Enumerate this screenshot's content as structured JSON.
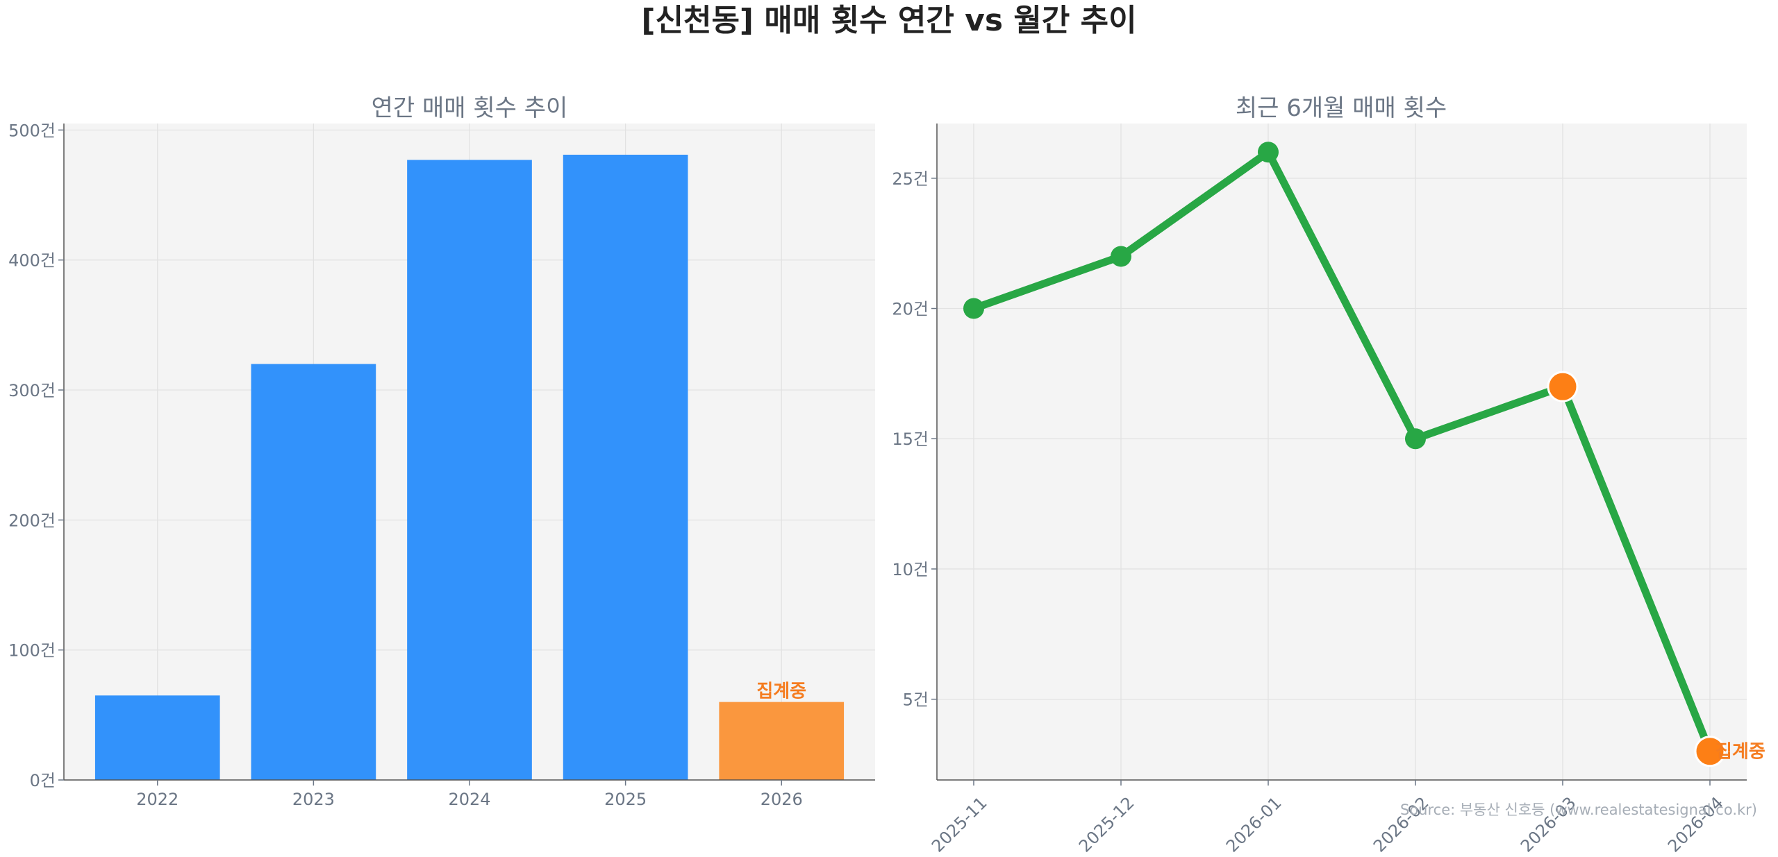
{
  "title": "[신천동] 매매 횟수 연간 vs 월간 추이",
  "source": "Source: 부동산 신호등 (www.realestatesignal.co.kr)",
  "colors": {
    "bar": "#3292fb",
    "bar_pending": "#fa973e",
    "line": "#28a745",
    "point": "#28a745",
    "point_highlight": "#fd7f15",
    "pending_text": "#f57c1f",
    "plot_bg": "#f4f4f4"
  },
  "chart_data": [
    {
      "type": "bar",
      "title": "연간 매매 횟수 추이",
      "categories": [
        "2022",
        "2023",
        "2024",
        "2025",
        "2026"
      ],
      "values": [
        65,
        320,
        477,
        481,
        60
      ],
      "pending": [
        false,
        false,
        false,
        false,
        true
      ],
      "pending_label": "집계중",
      "ylim": [
        0,
        505
      ],
      "yticks": [
        0,
        100,
        200,
        300,
        400,
        500
      ],
      "ytick_labels": [
        "0건",
        "100건",
        "200건",
        "300건",
        "400건",
        "500건"
      ],
      "grid": true
    },
    {
      "type": "line",
      "title": "최근 6개월 매매 횟수",
      "categories": [
        "2025-11",
        "2025-12",
        "2026-01",
        "2026-02",
        "2026-03",
        "2026-04"
      ],
      "values": [
        20,
        22,
        26,
        15,
        17,
        3
      ],
      "highlight": [
        false,
        false,
        false,
        false,
        true,
        true
      ],
      "pending_index": 5,
      "pending_label": "집계중",
      "ylim": [
        1.9,
        27.1
      ],
      "yticks": [
        5,
        10,
        15,
        20,
        25
      ],
      "ytick_labels": [
        "5건",
        "10건",
        "15건",
        "20건",
        "25건"
      ],
      "grid": true
    }
  ]
}
